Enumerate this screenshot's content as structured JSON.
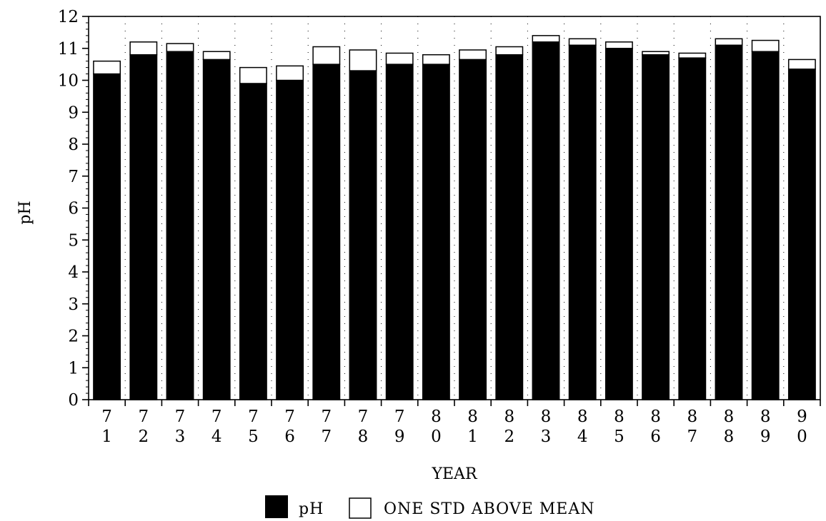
{
  "chart_data": {
    "type": "bar",
    "stacked": true,
    "ylabel": "pH",
    "xlabel": "YEAR",
    "ylim": [
      0,
      12
    ],
    "yticks": [
      "0",
      "1",
      "2",
      "3",
      "4",
      "5",
      "6",
      "7",
      "8",
      "9",
      "10",
      "11",
      "12"
    ],
    "grid": "dotted vertical",
    "legend_position": "bottom",
    "categories": [
      [
        "7",
        "1"
      ],
      [
        "7",
        "2"
      ],
      [
        "7",
        "3"
      ],
      [
        "7",
        "4"
      ],
      [
        "7",
        "5"
      ],
      [
        "7",
        "6"
      ],
      [
        "7",
        "7"
      ],
      [
        "7",
        "8"
      ],
      [
        "7",
        "9"
      ],
      [
        "8",
        "0"
      ],
      [
        "8",
        "1"
      ],
      [
        "8",
        "2"
      ],
      [
        "8",
        "3"
      ],
      [
        "8",
        "4"
      ],
      [
        "8",
        "5"
      ],
      [
        "8",
        "6"
      ],
      [
        "8",
        "7"
      ],
      [
        "8",
        "8"
      ],
      [
        "8",
        "9"
      ],
      [
        "9",
        "0"
      ]
    ],
    "series": [
      {
        "name": "pH",
        "color": "#000000",
        "values": [
          10.2,
          10.8,
          10.9,
          10.65,
          9.9,
          10.0,
          10.5,
          10.3,
          10.5,
          10.5,
          10.65,
          10.8,
          11.2,
          11.1,
          11.0,
          10.8,
          10.7,
          11.1,
          10.9,
          10.35
        ]
      },
      {
        "name": "ONE STD ABOVE MEAN",
        "color": "#ffffff",
        "values": [
          0.4,
          0.4,
          0.25,
          0.25,
          0.5,
          0.45,
          0.55,
          0.65,
          0.35,
          0.3,
          0.3,
          0.25,
          0.2,
          0.2,
          0.2,
          0.1,
          0.15,
          0.2,
          0.35,
          0.3
        ]
      }
    ]
  }
}
